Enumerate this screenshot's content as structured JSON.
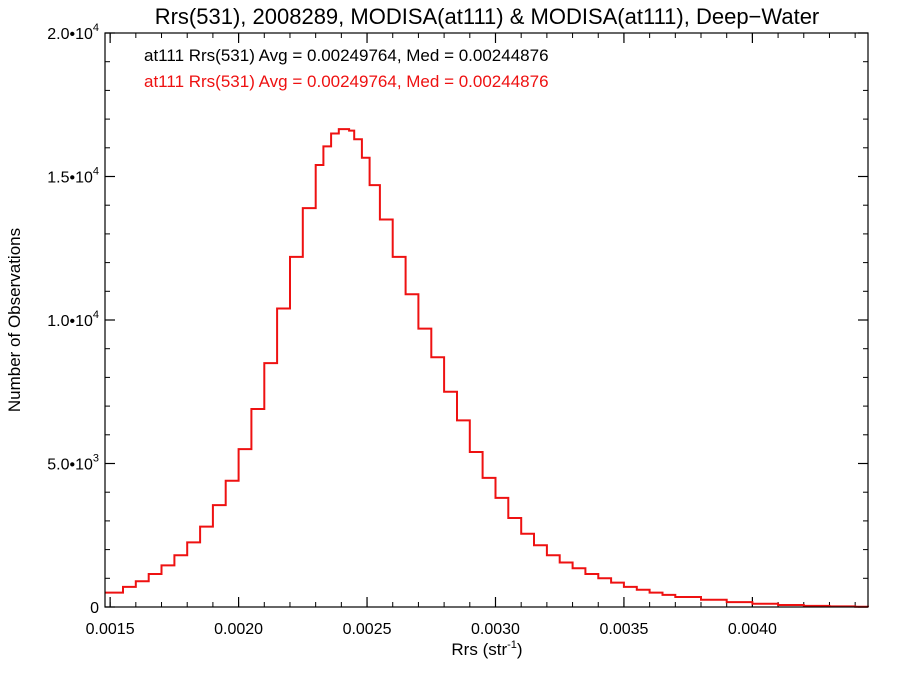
{
  "chart_data": {
    "type": "line",
    "step": true,
    "title": "Rrs(531), 2008289, MODISA(at111) & MODISA(at111), Deep−Water",
    "xlabel_main": "Rrs (str",
    "xlabel_sup": "-1",
    "xlabel_close": ")",
    "ylabel": "Number of Observations",
    "xlim": [
      0.00148,
      0.00445
    ],
    "ylim": [
      0,
      20000
    ],
    "x_major_ticks": [
      {
        "value": 0.0015,
        "label": "0.0015"
      },
      {
        "value": 0.002,
        "label": "0.0020"
      },
      {
        "value": 0.0025,
        "label": "0.0025"
      },
      {
        "value": 0.003,
        "label": "0.0030"
      },
      {
        "value": 0.0035,
        "label": "0.0035"
      },
      {
        "value": 0.004,
        "label": "0.0040"
      }
    ],
    "x_minor_step": 0.0001,
    "y_major_ticks": [
      {
        "value": 0,
        "base": "0",
        "exp": ""
      },
      {
        "value": 5000,
        "base": "5.0•10",
        "exp": "3"
      },
      {
        "value": 10000,
        "base": "1.0•10",
        "exp": "4"
      },
      {
        "value": 15000,
        "base": "1.5•10",
        "exp": "4"
      },
      {
        "value": 20000,
        "base": "2.0•10",
        "exp": "4"
      }
    ],
    "y_minor_step": 1000,
    "annotations": [
      {
        "text": "at111 Rrs(531) Avg = 0.00249764, Med = 0.00244876",
        "color": "#000000"
      },
      {
        "text": "at111 Rrs(531) Avg = 0.00249764, Med = 0.00244876",
        "color": "#ee1111"
      }
    ],
    "series": [
      {
        "color": "#ee1111",
        "x": [
          0.00148,
          0.00155,
          0.0016,
          0.00165,
          0.0017,
          0.00175,
          0.0018,
          0.00185,
          0.0019,
          0.00195,
          0.002,
          0.00205,
          0.0021,
          0.00215,
          0.0022,
          0.00225,
          0.0023,
          0.00233,
          0.00236,
          0.00239,
          0.00241,
          0.00243,
          0.00245,
          0.00248,
          0.00251,
          0.00255,
          0.0026,
          0.00265,
          0.0027,
          0.00275,
          0.0028,
          0.00285,
          0.0029,
          0.00295,
          0.003,
          0.00305,
          0.0031,
          0.00315,
          0.0032,
          0.00325,
          0.0033,
          0.00335,
          0.0034,
          0.00345,
          0.0035,
          0.00355,
          0.0036,
          0.00365,
          0.0037,
          0.0038,
          0.0039,
          0.004,
          0.0041,
          0.0042,
          0.0043,
          0.0044,
          0.00445
        ],
        "y": [
          500,
          700,
          900,
          1150,
          1450,
          1800,
          2250,
          2800,
          3550,
          4400,
          5500,
          6900,
          8500,
          10400,
          12200,
          13900,
          15400,
          16050,
          16500,
          16650,
          16650,
          16600,
          16300,
          15650,
          14700,
          13500,
          12200,
          10900,
          9700,
          8700,
          7500,
          6500,
          5400,
          4500,
          3800,
          3100,
          2550,
          2150,
          1800,
          1550,
          1350,
          1150,
          1000,
          850,
          700,
          600,
          500,
          420,
          350,
          250,
          170,
          110,
          70,
          40,
          20,
          10,
          5
        ]
      }
    ]
  }
}
